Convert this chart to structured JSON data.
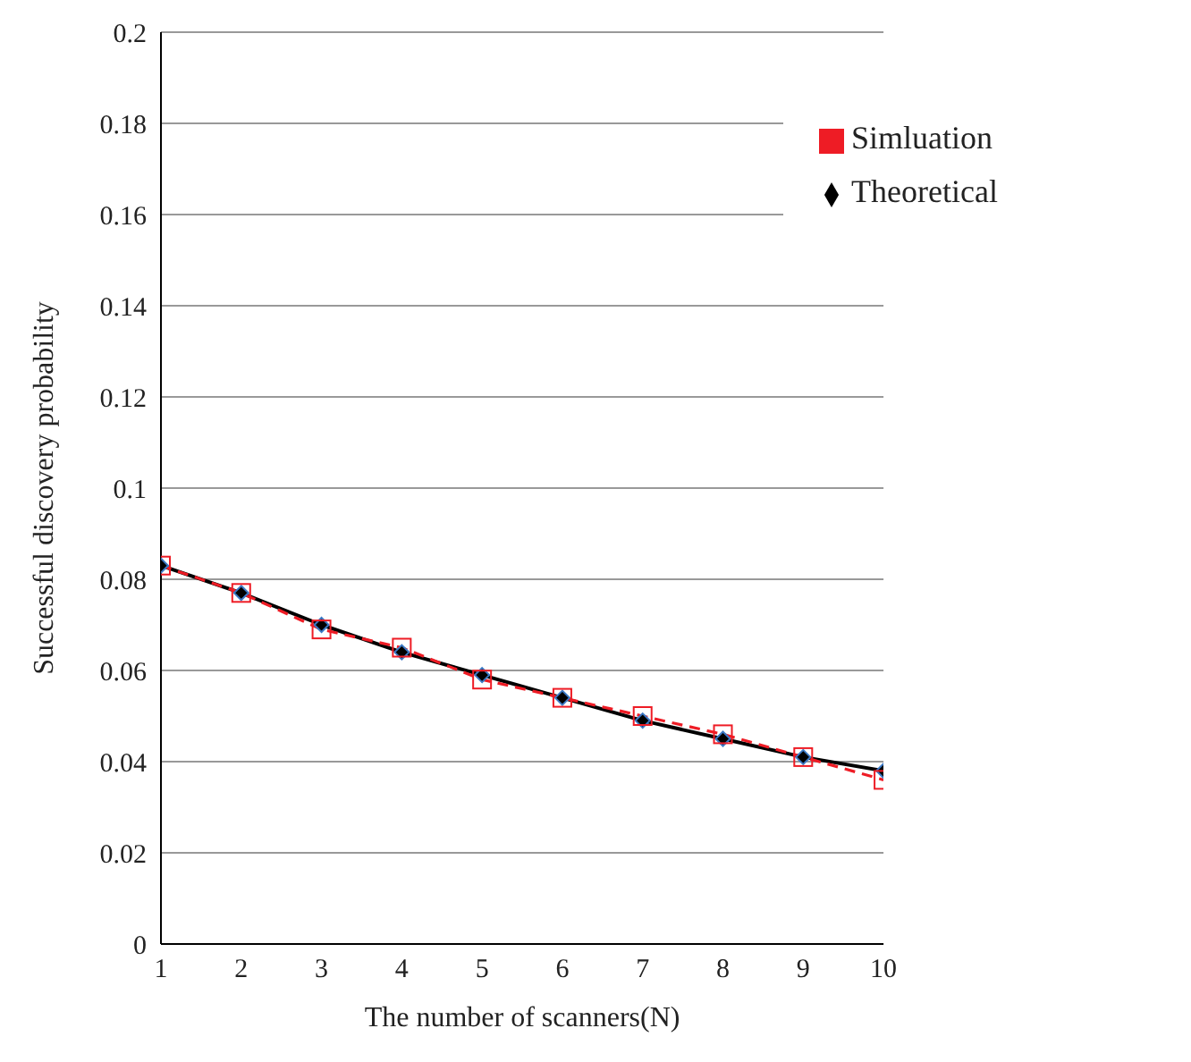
{
  "chart_data": {
    "type": "line",
    "xlabel": "The number of scanners(N)",
    "ylabel": "Successful discovery probability",
    "x": [
      1,
      2,
      3,
      4,
      5,
      6,
      7,
      8,
      9,
      10
    ],
    "series": [
      {
        "name": "Theoretical",
        "color": "#000000",
        "marker": "diamond",
        "line_style": "solid",
        "values": [
          0.083,
          0.077,
          0.07,
          0.064,
          0.059,
          0.054,
          0.049,
          0.045,
          0.041,
          0.038
        ]
      },
      {
        "name": "Simluation",
        "color": "#ee1c25",
        "marker": "square",
        "line_style": "dashed",
        "values": [
          0.083,
          0.077,
          0.069,
          0.065,
          0.058,
          0.054,
          0.05,
          0.046,
          0.041,
          0.036
        ]
      }
    ],
    "xlim": [
      1,
      10
    ],
    "xticks": [
      1,
      2,
      3,
      4,
      5,
      6,
      7,
      8,
      9,
      10
    ],
    "ylim": [
      0,
      0.2
    ],
    "yticks": [
      0,
      0.02,
      0.04,
      0.06,
      0.08,
      0.1,
      0.12,
      0.14,
      0.16,
      0.18,
      0.2
    ],
    "grid": "y",
    "legend": "top right"
  }
}
